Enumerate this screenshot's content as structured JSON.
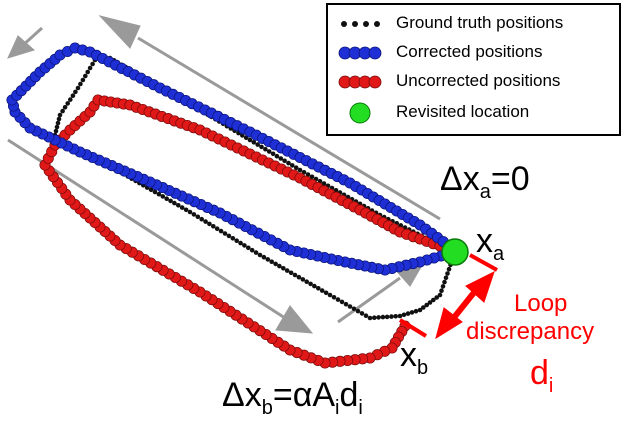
{
  "legend": {
    "ground_truth": "Ground truth positions",
    "corrected": "Corrected positions",
    "uncorrected": "Uncorrected positions",
    "revisited": "Revisited location"
  },
  "annotations": {
    "delta": "Δx",
    "a": "a",
    "b": "b",
    "x": "x",
    "equals_zero": "=0",
    "eq_prefix": "=αA",
    "i": "i",
    "d": "d",
    "loop_line1": "Loop",
    "loop_line2": "discrepancy"
  },
  "colors": {
    "ground_truth": "#111111",
    "corrected": "#1f2fd6",
    "uncorrected": "#e01818",
    "revisited": "#22dd22",
    "arrow_gray": "#9a9a9a",
    "discrepancy": "#ff0000"
  }
}
